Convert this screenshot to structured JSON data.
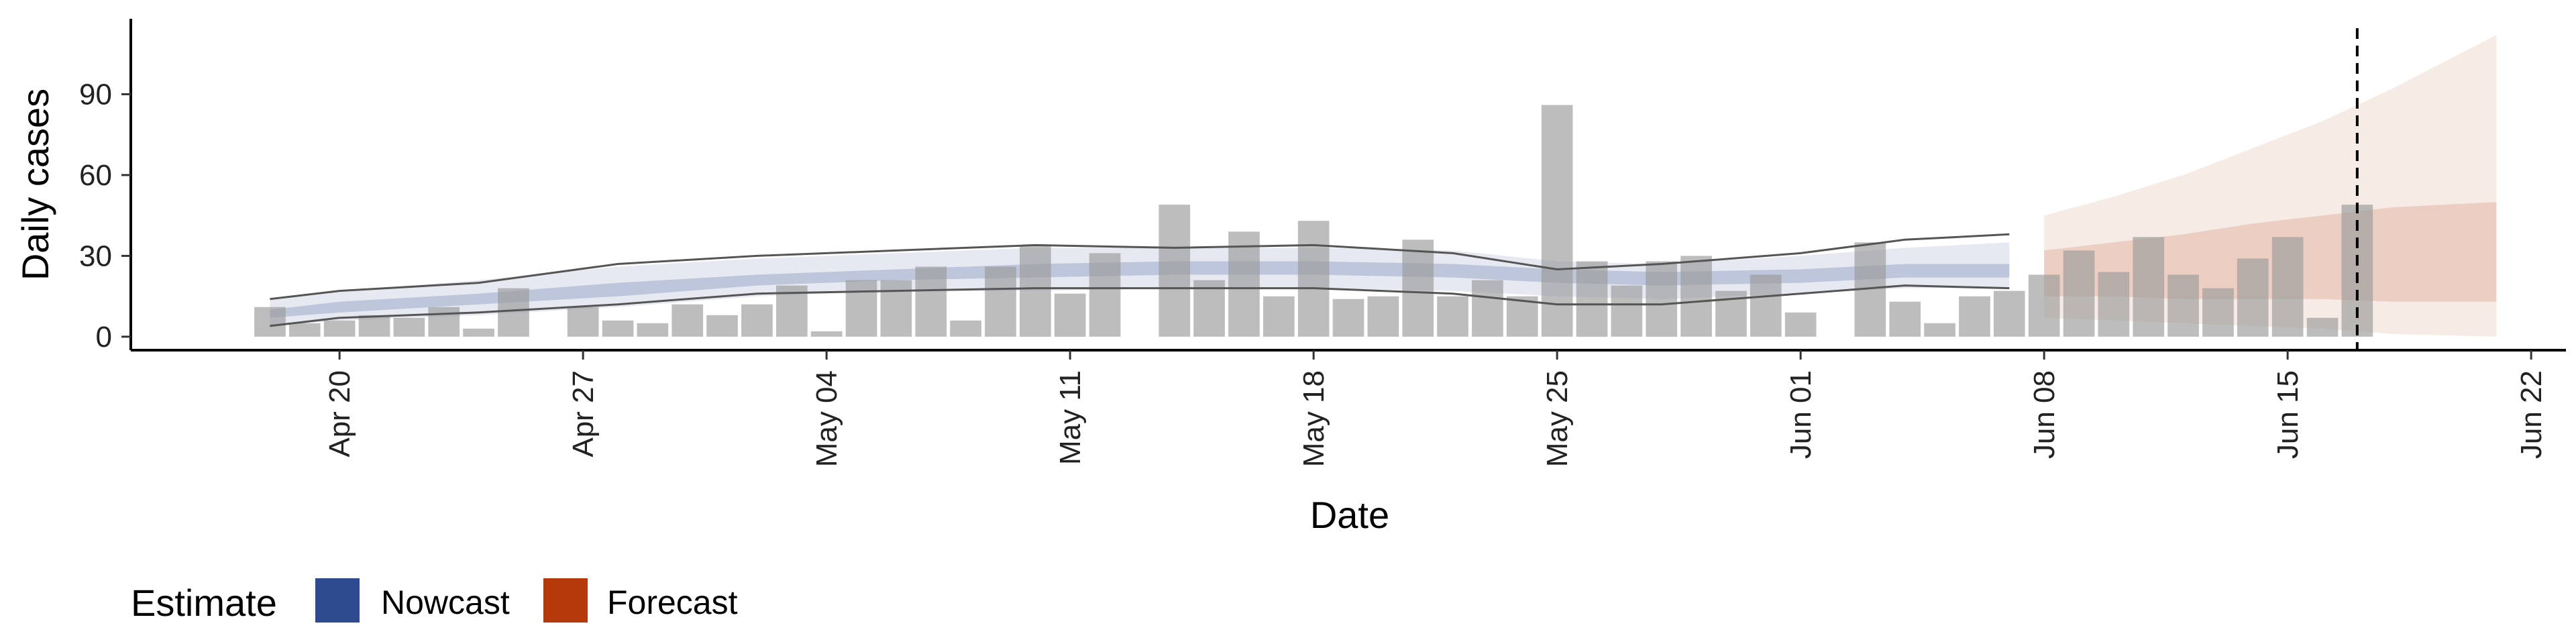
{
  "chart_data": {
    "type": "bar",
    "title": "",
    "xlabel": "Date",
    "ylabel": "Daily cases",
    "ylim": [
      -5,
      118
    ],
    "yticks": [
      0,
      30,
      60,
      90
    ],
    "xlim": [
      "2020-04-14",
      "2020-06-23"
    ],
    "xticks": [
      {
        "date": "2020-04-20",
        "label": "Apr 20"
      },
      {
        "date": "2020-04-27",
        "label": "Apr 27"
      },
      {
        "date": "2020-05-04",
        "label": "May 04"
      },
      {
        "date": "2020-05-11",
        "label": "May 11"
      },
      {
        "date": "2020-05-18",
        "label": "May 18"
      },
      {
        "date": "2020-05-25",
        "label": "May 25"
      },
      {
        "date": "2020-06-01",
        "label": "Jun 01"
      },
      {
        "date": "2020-06-08",
        "label": "Jun 08"
      },
      {
        "date": "2020-06-15",
        "label": "Jun 15"
      },
      {
        "date": "2020-06-22",
        "label": "Jun 22"
      }
    ],
    "grid": false,
    "observed_cases": {
      "start_date": "2020-04-18",
      "values": [
        11,
        5,
        6,
        8,
        7,
        11,
        3,
        18,
        0,
        11,
        6,
        5,
        12,
        8,
        12,
        19,
        2,
        21,
        21,
        26,
        6,
        26,
        34,
        16,
        31,
        0,
        49,
        21,
        39,
        15,
        43,
        14,
        15,
        36,
        15,
        21,
        15,
        86,
        28,
        19,
        28,
        30,
        17,
        23,
        9,
        0,
        35,
        13,
        5,
        15,
        17,
        23,
        32,
        24,
        37,
        23,
        18,
        29,
        37,
        7,
        49
      ]
    },
    "nowcast": {
      "color": "#2f4b8f",
      "dates": [
        "2020-04-18",
        "2020-04-20",
        "2020-04-24",
        "2020-04-28",
        "2020-05-02",
        "2020-05-06",
        "2020-05-10",
        "2020-05-14",
        "2020-05-18",
        "2020-05-22",
        "2020-05-25",
        "2020-05-28",
        "2020-06-01",
        "2020-06-04",
        "2020-06-07"
      ],
      "lower_90": [
        4,
        6,
        8,
        11,
        15,
        17,
        17,
        18,
        18,
        17,
        15,
        14,
        16,
        18,
        18
      ],
      "lower_50": [
        7,
        9,
        12,
        15,
        19,
        21,
        22,
        23,
        23,
        22,
        20,
        19,
        20,
        22,
        22
      ],
      "upper_50": [
        10,
        13,
        16,
        20,
        23,
        25,
        27,
        28,
        28,
        27,
        25,
        24,
        25,
        27,
        27
      ],
      "upper_90": [
        14,
        17,
        21,
        26,
        29,
        31,
        33,
        33,
        33,
        32,
        28,
        27,
        30,
        33,
        35
      ],
      "outer_lower_line": [
        4,
        7,
        9,
        12,
        16,
        17,
        18,
        18,
        18,
        16,
        12,
        12,
        16,
        19,
        18
      ],
      "outer_upper_line": [
        14,
        17,
        20,
        27,
        30,
        32,
        34,
        33,
        34,
        31,
        25,
        27,
        31,
        36,
        38
      ]
    },
    "forecast": {
      "color": "#b5390b",
      "dates": [
        "2020-06-08",
        "2020-06-10",
        "2020-06-12",
        "2020-06-14",
        "2020-06-16",
        "2020-06-18",
        "2020-06-21"
      ],
      "lower_90": [
        7,
        6,
        5,
        4,
        3,
        1,
        0
      ],
      "lower_50": [
        15,
        15,
        14,
        14,
        14,
        13,
        13
      ],
      "upper_50": [
        32,
        35,
        38,
        42,
        45,
        48,
        50
      ],
      "upper_90": [
        45,
        52,
        60,
        70,
        80,
        92,
        112
      ]
    },
    "reference_line": {
      "date": "2020-06-17",
      "style": "dashed"
    },
    "legend": {
      "title": "Estimate",
      "position": "bottom-left",
      "entries": [
        {
          "label": "Nowcast",
          "color": "#2f4b8f"
        },
        {
          "label": "Forecast",
          "color": "#b5390b"
        }
      ]
    }
  }
}
